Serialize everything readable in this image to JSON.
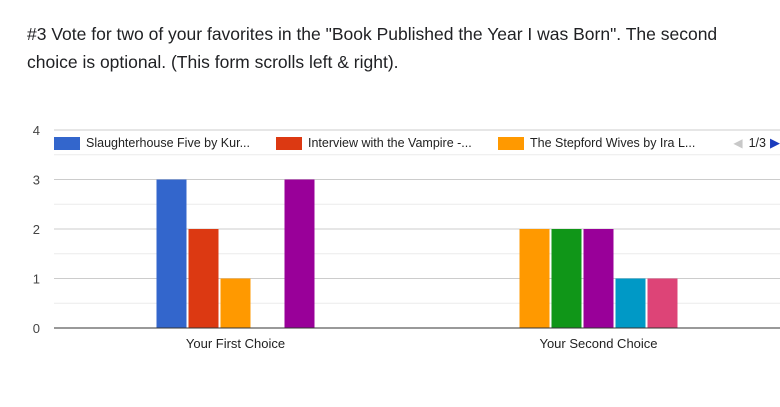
{
  "question": {
    "text": "#3 Vote for two of your favorites in the \"Book Published the Year I was Born\". The second choice is optional.  (This form scrolls left & right)."
  },
  "legend": {
    "page_indicator": "1/3",
    "prev_icon": "triangle-left",
    "next_icon": "triangle-right"
  },
  "chart_data": {
    "type": "bar",
    "categories": [
      "Your First Choice",
      "Your Second Choice"
    ],
    "y_ticks": [
      "0",
      "1",
      "2",
      "3",
      "4"
    ],
    "ylim": [
      0,
      4
    ],
    "grid": true,
    "legend_position": "top",
    "series": [
      {
        "name": "Slaughterhouse Five by Kur...",
        "color": "#3366cc",
        "values": [
          3,
          0
        ]
      },
      {
        "name": "Interview with the Vampire -...",
        "color": "#dc3912",
        "values": [
          2,
          0
        ]
      },
      {
        "name": "The Stepford Wives by Ira L...",
        "color": "#ff9900",
        "values": [
          1,
          2
        ]
      },
      {
        "color": "#109618",
        "values": [
          0,
          2
        ]
      },
      {
        "color": "#990099",
        "values": [
          3,
          2
        ]
      },
      {
        "color": "#0099c6",
        "values": [
          0,
          1
        ]
      },
      {
        "color": "#dd4477",
        "values": [
          0,
          1
        ]
      }
    ]
  }
}
